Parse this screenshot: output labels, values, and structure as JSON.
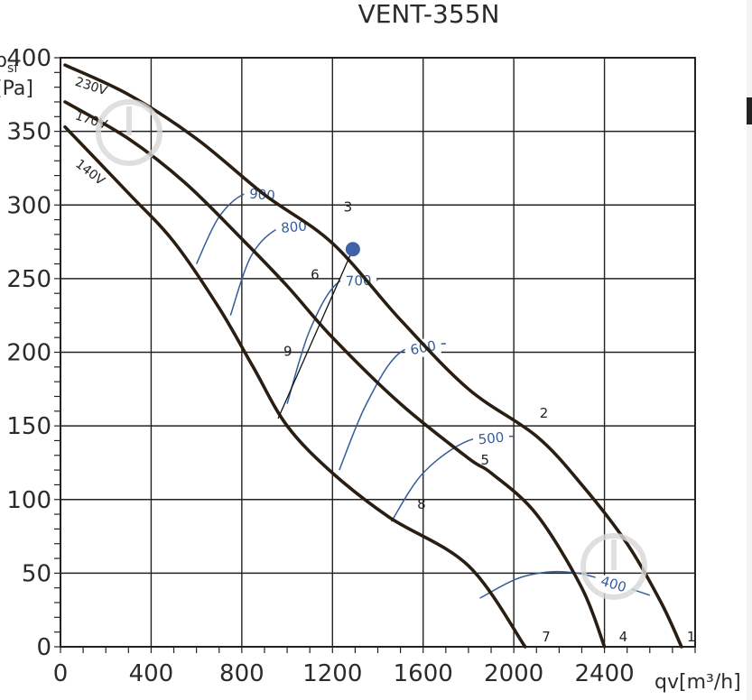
{
  "chart_data": {
    "type": "line",
    "title": "VENT-355N",
    "ylabel": "psf [Pa]",
    "xlabel": "qv[m³/h]",
    "xlim": [
      0,
      2800
    ],
    "ylim": [
      0,
      400
    ],
    "xticks": [
      0,
      400,
      800,
      1200,
      1600,
      2000,
      2400
    ],
    "yticks": [
      0,
      50,
      100,
      150,
      200,
      250,
      300,
      350,
      400
    ],
    "grid": true,
    "series": [
      {
        "name": "230V",
        "points": [
          [
            20,
            395
          ],
          [
            300,
            375
          ],
          [
            600,
            345
          ],
          [
            900,
            307
          ],
          [
            1200,
            274
          ],
          [
            1500,
            222
          ],
          [
            1800,
            175
          ],
          [
            2100,
            143
          ],
          [
            2300,
            110
          ],
          [
            2500,
            70
          ],
          [
            2650,
            30
          ],
          [
            2740,
            0
          ]
        ]
      },
      {
        "name": "170V",
        "points": [
          [
            20,
            370
          ],
          [
            300,
            345
          ],
          [
            550,
            315
          ],
          [
            800,
            277
          ],
          [
            1000,
            245
          ],
          [
            1200,
            210
          ],
          [
            1500,
            165
          ],
          [
            1800,
            128
          ],
          [
            1900,
            118
          ],
          [
            2100,
            90
          ],
          [
            2300,
            40
          ],
          [
            2400,
            0
          ]
        ]
      },
      {
        "name": "140V",
        "points": [
          [
            20,
            353
          ],
          [
            300,
            308
          ],
          [
            500,
            275
          ],
          [
            700,
            230
          ],
          [
            850,
            190
          ],
          [
            1000,
            150
          ],
          [
            1200,
            118
          ],
          [
            1450,
            88
          ],
          [
            1800,
            55
          ],
          [
            2050,
            0
          ]
        ]
      }
    ],
    "rpm_curves": [
      {
        "label": "900",
        "points": [
          [
            600,
            260
          ],
          [
            700,
            292
          ],
          [
            820,
            308
          ],
          [
            960,
            306
          ]
        ]
      },
      {
        "label": "800",
        "points": [
          [
            750,
            225
          ],
          [
            840,
            265
          ],
          [
            960,
            284
          ],
          [
            1100,
            286
          ]
        ]
      },
      {
        "label": "700",
        "points": [
          [
            1000,
            165
          ],
          [
            1100,
            215
          ],
          [
            1230,
            248
          ],
          [
            1400,
            249
          ]
        ]
      },
      {
        "label": "600",
        "points": [
          [
            1230,
            120
          ],
          [
            1350,
            165
          ],
          [
            1500,
            200
          ],
          [
            1700,
            206
          ]
        ]
      },
      {
        "label": "500",
        "points": [
          [
            1460,
            85
          ],
          [
            1600,
            118
          ],
          [
            1800,
            140
          ],
          [
            2000,
            143
          ]
        ]
      },
      {
        "label": "400",
        "points": [
          [
            1850,
            33
          ],
          [
            2050,
            48
          ],
          [
            2280,
            50
          ],
          [
            2600,
            35
          ]
        ]
      }
    ],
    "point_labels": [
      {
        "label": "1",
        "x": 2740,
        "y": 0
      },
      {
        "label": "2",
        "x": 2090,
        "y": 152
      },
      {
        "label": "3",
        "x": 1225,
        "y": 292
      },
      {
        "label": "4",
        "x": 2440,
        "y": 0
      },
      {
        "label": "5",
        "x": 1830,
        "y": 120
      },
      {
        "label": "6",
        "x": 1080,
        "y": 246
      },
      {
        "label": "7",
        "x": 2100,
        "y": 0
      },
      {
        "label": "8",
        "x": 1550,
        "y": 90
      },
      {
        "label": "9",
        "x": 960,
        "y": 194
      }
    ],
    "operating_point": {
      "x": 1290,
      "y": 270,
      "color": "#3f62a8"
    },
    "colors": {
      "curve": "#2a1d12",
      "rpm": "#355d9a",
      "grid": "#222222"
    }
  }
}
